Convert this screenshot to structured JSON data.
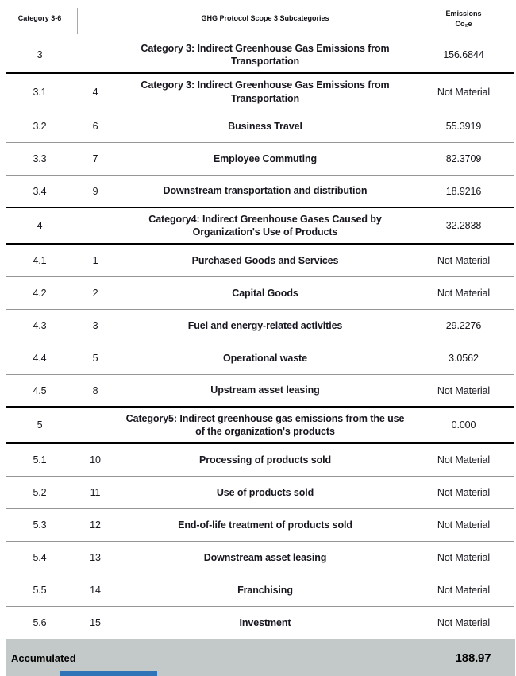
{
  "chart_data": {
    "type": "table",
    "title": "GHG Protocol Scope 3 Subcategories emissions table",
    "columns": [
      "Category 3-6",
      "GHG Protocol Scope 3 Subcategories",
      "Emissions Co₂e"
    ],
    "rows": [
      {
        "category": "3",
        "subcategory": "",
        "label": "Category 3: Indirect Greenhouse Gas Emissions from Transportation",
        "emissions": "156.6844"
      },
      {
        "category": "3.1",
        "subcategory": "4",
        "label": "Category 3: Indirect Greenhouse Gas Emissions from Transportation",
        "emissions": "Not Material"
      },
      {
        "category": "3.2",
        "subcategory": "6",
        "label": "Business Travel",
        "emissions": "55.3919"
      },
      {
        "category": "3.3",
        "subcategory": "7",
        "label": "Employee Commuting",
        "emissions": "82.3709"
      },
      {
        "category": "3.4",
        "subcategory": "9",
        "label": "Downstream transportation and distribution",
        "emissions": "18.9216"
      },
      {
        "category": "4",
        "subcategory": "",
        "label": "Category4: Indirect Greenhouse Gases Caused by Organization's Use of Products",
        "emissions": "32.2838"
      },
      {
        "category": "4.1",
        "subcategory": "1",
        "label": "Purchased Goods and Services",
        "emissions": "Not Material"
      },
      {
        "category": "4.2",
        "subcategory": "2",
        "label": "Capital Goods",
        "emissions": "Not Material"
      },
      {
        "category": "4.3",
        "subcategory": "3",
        "label": "Fuel and energy-related activities",
        "emissions": "29.2276"
      },
      {
        "category": "4.4",
        "subcategory": "5",
        "label": "Operational waste",
        "emissions": "3.0562"
      },
      {
        "category": "4.5",
        "subcategory": "8",
        "label": "Upstream asset leasing",
        "emissions": "Not Material"
      },
      {
        "category": "5",
        "subcategory": "",
        "label": "Category5: Indirect greenhouse gas emissions from the use of the organization's products",
        "emissions": "0.000"
      },
      {
        "category": "5.1",
        "subcategory": "10",
        "label": "Processing of products sold",
        "emissions": "Not Material"
      },
      {
        "category": "5.2",
        "subcategory": "11",
        "label": "Use of products sold",
        "emissions": "Not Material"
      },
      {
        "category": "5.3",
        "subcategory": "12",
        "label": "End-of-life treatment of products sold",
        "emissions": "Not Material"
      },
      {
        "category": "5.4",
        "subcategory": "13",
        "label": "Downstream asset leasing",
        "emissions": "Not Material"
      },
      {
        "category": "5.5",
        "subcategory": "14",
        "label": "Franchising",
        "emissions": "Not Material"
      },
      {
        "category": "5.6",
        "subcategory": "15",
        "label": "Investment",
        "emissions": "Not Material"
      }
    ],
    "accumulated": "188.97"
  },
  "header": {
    "col_category": "Category 3-6",
    "col_subcategories": "GHG Protocol Scope 3 Subcategories",
    "col_emissions_line1": "Emissions",
    "col_emissions_line2": "Co₂e"
  },
  "footer": {
    "label": "Accumulated"
  },
  "colors": {
    "text": "#17171f",
    "thin_border": "#969696",
    "thick_border": "#000000",
    "accumulated_bg": "#c3c9c8",
    "scrollbar_blue": "#2e74b6"
  }
}
